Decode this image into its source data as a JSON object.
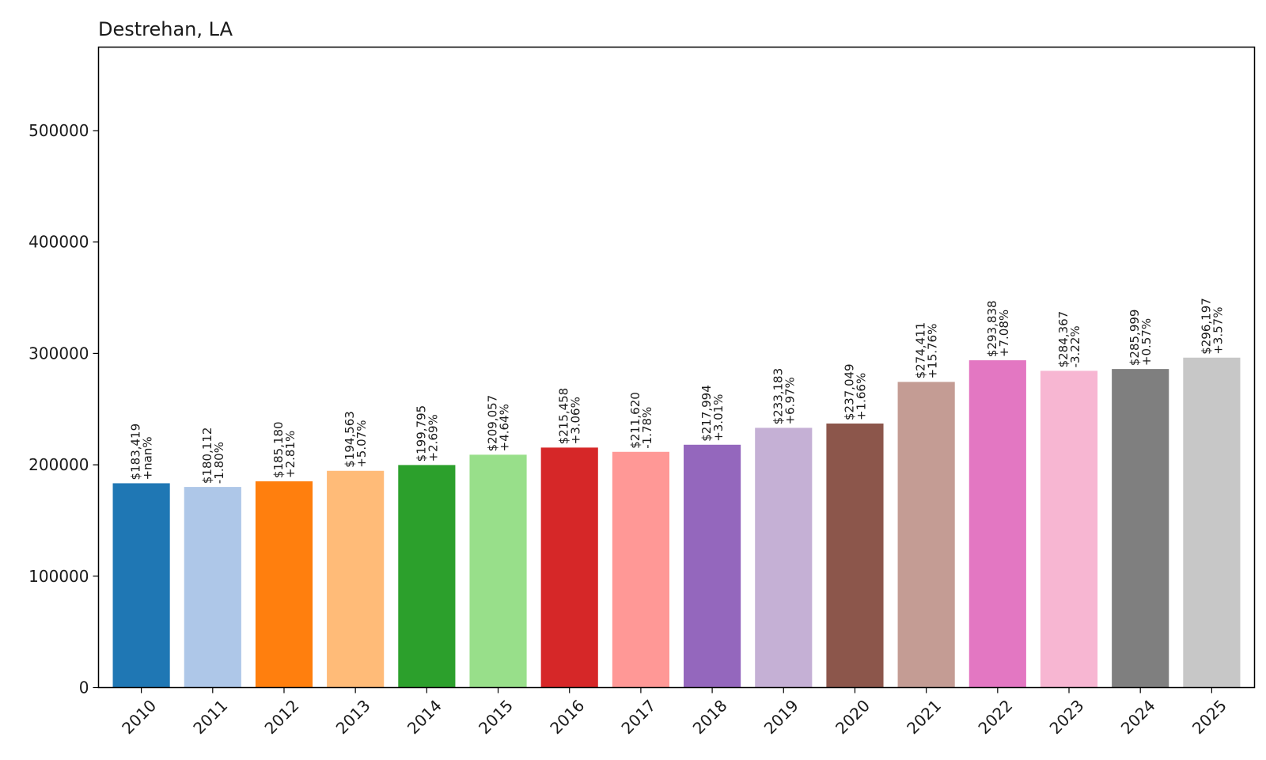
{
  "chart_data": {
    "type": "bar",
    "title": "Destrehan, LA",
    "xlabel": "",
    "ylabel": "",
    "ylim": [
      0,
      575000
    ],
    "yticks": [
      "0",
      "100000",
      "200000",
      "300000",
      "400000",
      "500000"
    ],
    "ytick_values": [
      0,
      100000,
      200000,
      300000,
      400000,
      500000
    ],
    "categories": [
      "2010",
      "2011",
      "2012",
      "2013",
      "2014",
      "2015",
      "2016",
      "2017",
      "2018",
      "2019",
      "2020",
      "2021",
      "2022",
      "2023",
      "2024",
      "2025"
    ],
    "values": [
      183419,
      180112,
      185180,
      194563,
      199795,
      209057,
      215458,
      211620,
      217994,
      233183,
      237049,
      274411,
      293838,
      284367,
      285999,
      296197
    ],
    "value_labels": [
      "$183,419",
      "$180,112",
      "$185,180",
      "$194,563",
      "$199,795",
      "$209,057",
      "$215,458",
      "$211,620",
      "$217,994",
      "$233,183",
      "$237,049",
      "$274,411",
      "$293,838",
      "$284,367",
      "$285,999",
      "$296,197"
    ],
    "change_labels": [
      "+nan%",
      "-1.80%",
      "+2.81%",
      "+5.07%",
      "+2.69%",
      "+4.64%",
      "+3.06%",
      "-1.78%",
      "+3.01%",
      "+6.97%",
      "+1.66%",
      "+15.76%",
      "+7.08%",
      "-3.22%",
      "+0.57%",
      "+3.57%"
    ],
    "colors": [
      "#1f77b4",
      "#aec7e8",
      "#ff7f0e",
      "#ffbb78",
      "#2ca02c",
      "#98df8a",
      "#d62728",
      "#ff9896",
      "#9467bd",
      "#c5b0d5",
      "#8c564b",
      "#c49c94",
      "#e377c2",
      "#f7b6d2",
      "#7f7f7f",
      "#c7c7c7"
    ],
    "grid": false,
    "legend": "none"
  }
}
